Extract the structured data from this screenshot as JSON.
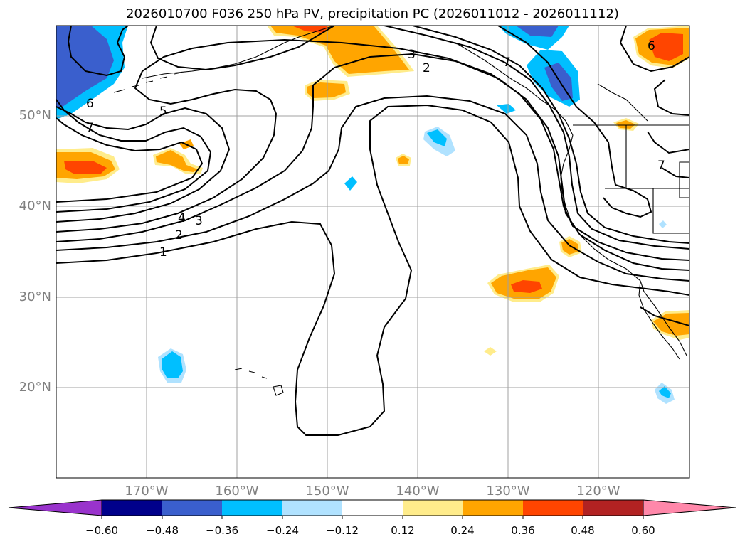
{
  "title": "2026010700 F036 250 hPa PV, precipitation PC (2026011012 - 2026011112)",
  "lat_labels": [
    "50°N",
    "40°N",
    "30°N",
    "20°N"
  ],
  "lon_labels": [
    "170°W",
    "160°W",
    "150°W",
    "140°W",
    "130°W",
    "120°W"
  ],
  "contour_labels": {
    "c1": "1",
    "c2": "2",
    "c3": "3",
    "c4": "4",
    "c5": "5",
    "c6": "6",
    "c7": "7",
    "c2_ne": "2",
    "c3_ne": "3",
    "c7_ne": "7",
    "c6_ne": "6",
    "c7_e": "7"
  },
  "colorbar": {
    "ticks": [
      "−0.60",
      "−0.48",
      "−0.36",
      "−0.24",
      "−0.12",
      "0.12",
      "0.24",
      "0.36",
      "0.48",
      "0.60"
    ],
    "colors": [
      "#9933cc",
      "#00008b",
      "#3a5fcd",
      "#00bfff",
      "#b0e2ff",
      "#ffffff",
      "#ffec8b",
      "#ffa500",
      "#ff4500",
      "#b22222",
      "#ff88aa"
    ]
  },
  "colors": {
    "grid": "#a0a0a0",
    "axis_text": "#808080",
    "contour": "#000000"
  }
}
